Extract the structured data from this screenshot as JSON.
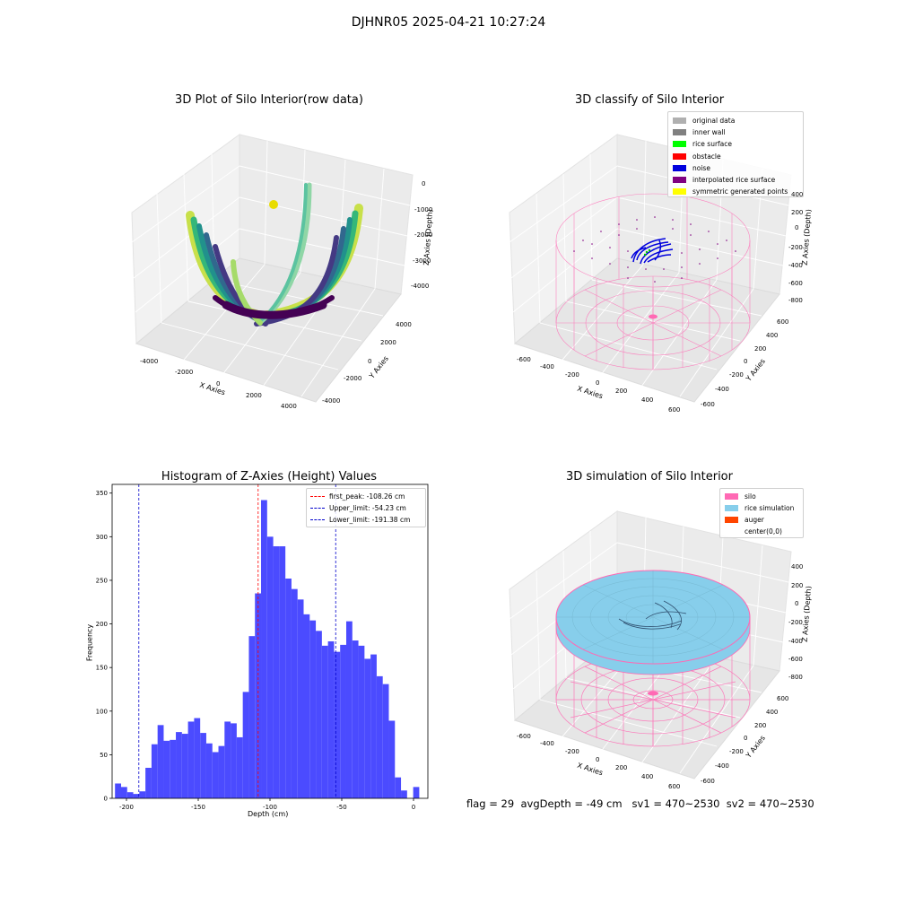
{
  "suptitle": "DJHNR05 2025-04-21 10:27:24",
  "footer": {
    "flag": "flag = 29",
    "avg_depth": "avgDepth = -49 cm",
    "sv1": "sv1 = 470~2530",
    "sv2": "sv2 = 470~2530"
  },
  "colors": {
    "histogram_bar": "#4b4bff",
    "first_peak": "#ff0000",
    "limit": "#0000cc",
    "silo": "#ff69b4",
    "rice_simulation": "#87ceeb",
    "auger": "#ff4500",
    "noise": "#0000dd",
    "rice_surface": "#00ff00",
    "yellow_points": "#ffff00",
    "original_data": "#b0b0b0",
    "inner_wall": "#808080",
    "interpolated": "#800080"
  },
  "chart_data": [
    {
      "type": "scatter3d",
      "title": "3D Plot of Silo Interior(row data)",
      "xlabel": "X Axies",
      "ylabel": "Y Axies",
      "zlabel": "Z Axies (Depth)",
      "x_ticks": [
        "-4000",
        "-2000",
        "0",
        "2000",
        "4000"
      ],
      "y_ticks": [
        "-4000",
        "-2000",
        "0",
        "2000",
        "4000"
      ],
      "z_ticks": [
        "0",
        "-1000",
        "-2000",
        "-3000",
        "-4000"
      ],
      "xlim": [
        -4800,
        4800
      ],
      "ylim": [
        -4800,
        4800
      ],
      "zlim": [
        -4600,
        0
      ]
    },
    {
      "type": "scatter3d",
      "title": "3D classify of Silo Interior",
      "xlabel": "X Axies",
      "ylabel": "Y Axies",
      "zlabel": "Z Axies (Depth)",
      "x_ticks": [
        "-600",
        "-400",
        "-200",
        "0",
        "200",
        "400",
        "600"
      ],
      "y_ticks": [
        "-600",
        "-400",
        "-200",
        "0",
        "200",
        "400",
        "600"
      ],
      "z_ticks": [
        "400",
        "200",
        "0",
        "-200",
        "-400",
        "-600",
        "-800"
      ],
      "legend_position": "top-right",
      "legend": [
        {
          "label": "original data",
          "color": "#b0b0b0"
        },
        {
          "label": "inner wall",
          "color": "#808080"
        },
        {
          "label": "rice surface",
          "color": "#00ff00"
        },
        {
          "label": "obstacle",
          "color": "#ff0000"
        },
        {
          "label": "noise",
          "color": "#0000dd"
        },
        {
          "label": "interpolated rice surface",
          "color": "#800080"
        },
        {
          "label": "symmetric generated points",
          "color": "#ffff00"
        }
      ]
    },
    {
      "type": "bar",
      "title": "Histogram of Z-Axies (Height) Values",
      "xlabel": "Depth (cm)",
      "ylabel": "Frequency",
      "xlim": [
        -210,
        10
      ],
      "ylim": [
        0,
        360
      ],
      "x_ticks": [
        "-200",
        "-150",
        "-100",
        "-50",
        "0"
      ],
      "y_ticks": [
        "0",
        "50",
        "100",
        "150",
        "200",
        "250",
        "300",
        "350"
      ],
      "bin_start": -208,
      "bin_width": 4.24,
      "values": [
        17,
        13,
        7,
        5,
        8,
        35,
        62,
        84,
        66,
        67,
        76,
        74,
        88,
        92,
        75,
        63,
        53,
        60,
        88,
        86,
        70,
        122,
        186,
        235,
        342,
        300,
        289,
        289,
        252,
        240,
        228,
        211,
        204,
        192,
        175,
        180,
        168,
        176,
        203,
        181,
        175,
        160,
        165,
        140,
        131,
        89,
        24,
        9,
        0,
        13
      ],
      "vlines": [
        {
          "label": "first_peak: -108.26 cm",
          "x": -108.26,
          "color": "#ff0000"
        },
        {
          "label": "Upper_limit: -54.23 cm",
          "x": -54.23,
          "color": "#0000cc"
        },
        {
          "label": "Lower_limit: -191.38 cm",
          "x": -191.38,
          "color": "#0000cc"
        }
      ],
      "legend_position": "top-right"
    },
    {
      "type": "surface3d",
      "title": "3D simulation of Silo Interior",
      "xlabel": "X Axies",
      "ylabel": "Y Axies",
      "zlabel": "Z Axies (Depth)",
      "x_ticks": [
        "-600",
        "-400",
        "-200",
        "0",
        "200",
        "400",
        "600"
      ],
      "y_ticks": [
        "-600",
        "-400",
        "-200",
        "0",
        "200",
        "400",
        "600"
      ],
      "z_ticks": [
        "400",
        "200",
        "0",
        "-200",
        "-400",
        "-600",
        "-800"
      ],
      "legend_position": "top-right",
      "legend": [
        {
          "label": "silo",
          "color": "#ff69b4"
        },
        {
          "label": "rice simulation",
          "color": "#87ceeb"
        },
        {
          "label": "auger",
          "color": "#ff4500"
        },
        {
          "label": "center(0,0)",
          "color": "#ffffff"
        }
      ]
    }
  ]
}
